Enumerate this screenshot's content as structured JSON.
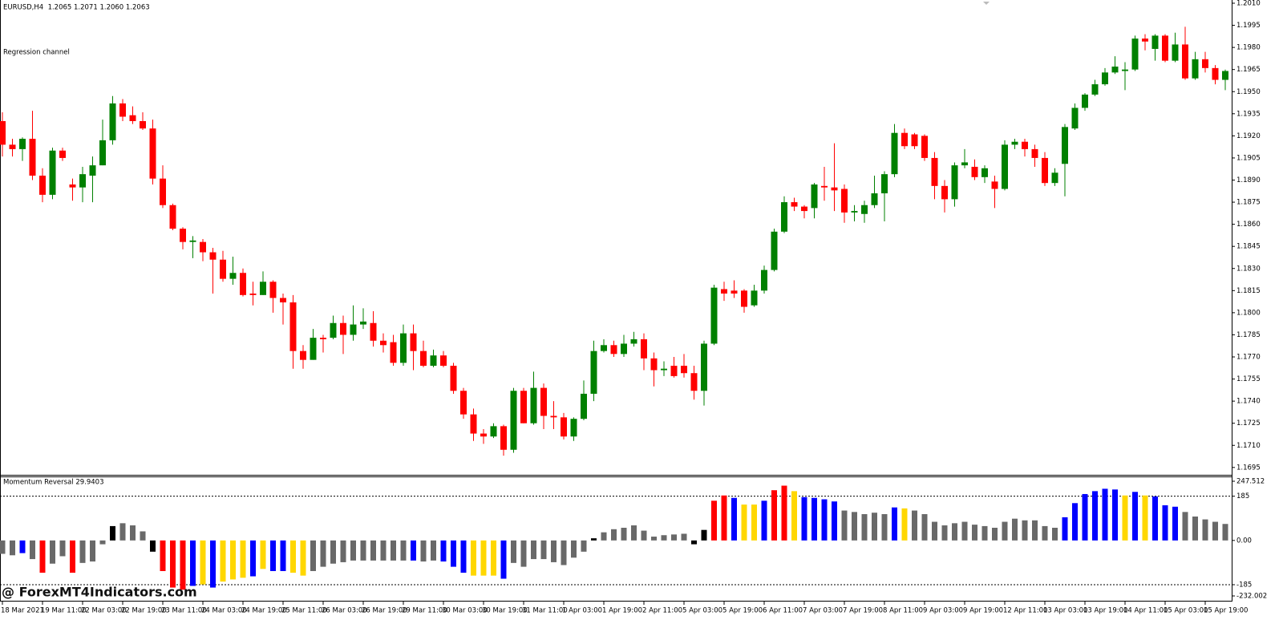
{
  "watermark": "@ ForexMT4Indicators.com",
  "chart_data": [
    {
      "type": "candlestick",
      "title": "EURUSD,H4  1.2065 1.2071 1.2060 1.2063",
      "annotation": "Regression channel",
      "up_color": "#008000",
      "down_color": "#ff0000",
      "categories": [
        "18 Mar 2021",
        null,
        null,
        null,
        "19 Mar 11:00",
        null,
        null,
        null,
        "22 Mar 03:00",
        null,
        null,
        null,
        "22 Mar 19:00",
        null,
        null,
        null,
        "23 Mar 11:00",
        null,
        null,
        null,
        "24 Mar 03:00",
        null,
        null,
        null,
        "24 Mar 19:00",
        null,
        null,
        null,
        "25 Mar 11:00",
        null,
        null,
        null,
        "26 Mar 03:00",
        null,
        null,
        null,
        "26 Mar 19:00",
        null,
        null,
        null,
        "29 Mar 11:00",
        null,
        null,
        null,
        "30 Mar 03:00",
        null,
        null,
        null,
        "30 Mar 19:00",
        null,
        null,
        null,
        "31 Mar 11:00",
        null,
        null,
        null,
        "1 Apr 03:00",
        null,
        null,
        null,
        "1 Apr 19:00",
        null,
        null,
        null,
        "2 Apr 11:00",
        null,
        null,
        null,
        "5 Apr 03:00",
        null,
        null,
        null,
        "5 Apr 19:00",
        null,
        null,
        null,
        "6 Apr 11:00",
        null,
        null,
        null,
        "7 Apr 03:00",
        null,
        null,
        null,
        "7 Apr 19:00",
        null,
        null,
        null,
        "8 Apr 11:00",
        null,
        null,
        null,
        "9 Apr 03:00",
        null,
        null,
        null,
        "9 Apr 19:00",
        null,
        null,
        null,
        "12 Apr 11:00",
        null,
        null,
        null,
        "13 Apr 03:00",
        null,
        null,
        null,
        "13 Apr 19:00",
        null,
        null,
        null,
        "14 Apr 11:00",
        null,
        null,
        null,
        "15 Apr 03:00",
        null,
        null,
        null,
        "15 Apr 19:00",
        null,
        null
      ],
      "open": [
        1.193,
        1.1914,
        1.1911,
        1.1918,
        1.1893,
        1.188,
        1.191,
        1.1887,
        1.1885,
        1.1893,
        1.19,
        1.1917,
        1.1942,
        1.1934,
        1.193,
        1.1925,
        1.1891,
        1.1873,
        1.1857,
        1.1848,
        1.1848,
        1.1841,
        1.1836,
        1.1823,
        1.1827,
        1.1813,
        1.1812,
        1.1821,
        1.181,
        1.1807,
        1.1774,
        1.1768,
        1.1783,
        1.1783,
        1.1793,
        1.1785,
        1.1792,
        1.1793,
        1.1781,
        1.178,
        1.1766,
        1.1786,
        1.1774,
        1.1764,
        1.1771,
        1.1764,
        1.1747,
        1.1731,
        1.1718,
        1.1716,
        1.1723,
        1.1707,
        1.1747,
        1.1725,
        1.1749,
        1.173,
        1.1729,
        1.1716,
        1.1728,
        1.1745,
        1.1774,
        1.1778,
        1.1772,
        1.1779,
        1.1782,
        1.1769,
        1.1761,
        1.1764,
        1.1764,
        1.1759,
        1.1747,
        1.1779,
        1.1816,
        1.1815,
        1.1815,
        1.1805,
        1.1815,
        1.1829,
        1.1855,
        1.1875,
        1.1872,
        1.1871,
        1.1886,
        1.1885,
        1.1884,
        1.1868,
        1.1867,
        1.1873,
        1.1881,
        1.1894,
        1.1922,
        1.1921,
        1.192,
        1.1905,
        1.1886,
        1.1877,
        1.19,
        1.1899,
        1.1892,
        1.1889,
        1.1884,
        1.1914,
        1.1916,
        1.1911,
        1.1905,
        1.1888,
        1.1901,
        1.1925,
        1.1939,
        1.1948,
        1.1955,
        1.1963,
        1.1964,
        1.1965,
        1.1986,
        1.1979,
        1.1988,
        1.1971,
        1.1982,
        1.1959,
        1.1972,
        1.1966,
        1.1958
      ],
      "high": [
        1.1936,
        1.1918,
        1.1919,
        1.1937,
        1.1898,
        1.1912,
        1.1912,
        1.1891,
        1.1899,
        1.1906,
        1.1931,
        1.1947,
        1.1945,
        1.194,
        1.1936,
        1.1931,
        1.19,
        1.1874,
        1.1858,
        1.1852,
        1.185,
        1.1844,
        1.1842,
        1.1838,
        1.183,
        1.1821,
        1.1828,
        1.1822,
        1.1813,
        1.1812,
        1.1778,
        1.1789,
        1.1785,
        1.1798,
        1.1798,
        1.1805,
        1.1803,
        1.1801,
        1.1786,
        1.1785,
        1.1792,
        1.1792,
        1.1781,
        1.1775,
        1.1774,
        1.1766,
        1.1749,
        1.1735,
        1.1721,
        1.1725,
        1.1724,
        1.1749,
        1.1749,
        1.176,
        1.1752,
        1.174,
        1.1732,
        1.1729,
        1.1754,
        1.1781,
        1.1782,
        1.1781,
        1.1785,
        1.1787,
        1.1786,
        1.1773,
        1.1767,
        1.177,
        1.1772,
        1.1764,
        1.1781,
        1.1819,
        1.1821,
        1.1822,
        1.1816,
        1.1819,
        1.1832,
        1.1857,
        1.1879,
        1.1878,
        1.1873,
        1.1888,
        1.1899,
        1.1915,
        1.1887,
        1.1873,
        1.1876,
        1.1893,
        1.1896,
        1.1928,
        1.1925,
        1.1922,
        1.1921,
        1.1909,
        1.189,
        1.1902,
        1.1911,
        1.1904,
        1.19,
        1.1893,
        1.1917,
        1.1918,
        1.1918,
        1.1914,
        1.1909,
        1.1898,
        1.1928,
        1.1942,
        1.1949,
        1.1958,
        1.1966,
        1.1974,
        1.197,
        1.1988,
        1.1989,
        1.1989,
        1.1989,
        1.199,
        1.1994,
        1.1977,
        1.1977,
        1.1968,
        1.1965
      ],
      "low": [
        1.1906,
        1.1906,
        1.1903,
        1.189,
        1.1875,
        1.1877,
        1.1903,
        1.1876,
        1.1875,
        1.1875,
        1.19,
        1.1914,
        1.193,
        1.1928,
        1.1924,
        1.1887,
        1.1871,
        1.1856,
        1.1843,
        1.1837,
        1.1835,
        1.1813,
        1.1821,
        1.1819,
        1.1811,
        1.1805,
        1.1812,
        1.18,
        1.1792,
        1.1762,
        1.1762,
        1.1768,
        1.1773,
        1.1782,
        1.1772,
        1.1781,
        1.1789,
        1.1777,
        1.1773,
        1.1764,
        1.1764,
        1.1761,
        1.1763,
        1.1763,
        1.1763,
        1.1745,
        1.1728,
        1.1713,
        1.1711,
        1.1715,
        1.1703,
        1.1705,
        1.1725,
        1.1724,
        1.1721,
        1.1721,
        1.1714,
        1.1713,
        1.1727,
        1.174,
        1.1773,
        1.177,
        1.177,
        1.1777,
        1.1761,
        1.175,
        1.1757,
        1.1756,
        1.1756,
        1.1741,
        1.1737,
        1.1778,
        1.1808,
        1.181,
        1.18,
        1.1804,
        1.1813,
        1.1828,
        1.1854,
        1.1869,
        1.1864,
        1.1864,
        1.1876,
        1.1869,
        1.1861,
        1.1862,
        1.1861,
        1.1871,
        1.1862,
        1.1892,
        1.1911,
        1.1911,
        1.1903,
        1.1877,
        1.1868,
        1.1872,
        1.1898,
        1.189,
        1.1888,
        1.1871,
        1.1883,
        1.1911,
        1.1906,
        1.1899,
        1.1886,
        1.1886,
        1.1879,
        1.1924,
        1.1937,
        1.1947,
        1.1954,
        1.1962,
        1.1951,
        1.1964,
        1.1978,
        1.1971,
        1.197,
        1.197,
        1.1958,
        1.1958,
        1.1963,
        1.1955,
        1.1951
      ],
      "close": [
        1.1914,
        1.1911,
        1.1918,
        1.1893,
        1.188,
        1.191,
        1.1905,
        1.1885,
        1.1894,
        1.19,
        1.1917,
        1.1942,
        1.1933,
        1.193,
        1.1925,
        1.1891,
        1.1873,
        1.1857,
        1.1848,
        1.1849,
        1.1841,
        1.1836,
        1.1823,
        1.1827,
        1.1812,
        1.1812,
        1.1821,
        1.181,
        1.1807,
        1.1774,
        1.1768,
        1.1783,
        1.1782,
        1.1793,
        1.1785,
        1.1792,
        1.1794,
        1.1781,
        1.1778,
        1.1766,
        1.1786,
        1.1774,
        1.1764,
        1.1771,
        1.1764,
        1.1747,
        1.1731,
        1.1718,
        1.1716,
        1.1723,
        1.1707,
        1.1747,
        1.1725,
        1.1749,
        1.173,
        1.1729,
        1.1716,
        1.1728,
        1.1745,
        1.1774,
        1.1778,
        1.1772,
        1.1779,
        1.1782,
        1.1769,
        1.1761,
        1.1762,
        1.1757,
        1.1759,
        1.1747,
        1.1779,
        1.1817,
        1.1813,
        1.1813,
        1.1804,
        1.1815,
        1.1829,
        1.1855,
        1.1875,
        1.1872,
        1.1869,
        1.1887,
        1.1885,
        1.1883,
        1.1868,
        1.1869,
        1.1873,
        1.1881,
        1.1894,
        1.1922,
        1.1913,
        1.1913,
        1.1905,
        1.1886,
        1.1877,
        1.19,
        1.1902,
        1.1892,
        1.1898,
        1.1884,
        1.1914,
        1.1916,
        1.1911,
        1.1905,
        1.1888,
        1.1895,
        1.1926,
        1.1939,
        1.1948,
        1.1955,
        1.1963,
        1.1967,
        1.1965,
        1.1986,
        1.1984,
        1.1988,
        1.1971,
        1.1982,
        1.1959,
        1.1972,
        1.1966,
        1.1958,
        1.1964
      ],
      "ylim": [
        1.169,
        1.201
      ],
      "yticks": [
        {
          "value": 1.201,
          "label": "1.2010"
        },
        1.1995,
        {
          "value": 1.198,
          "label": "1.1980"
        },
        1.1965,
        {
          "value": 1.195,
          "label": "1.1950"
        },
        1.1935,
        {
          "value": 1.192,
          "label": "1.1920"
        },
        1.1905,
        {
          "value": 1.189,
          "label": "1.1890"
        },
        1.1875,
        {
          "value": 1.186,
          "label": "1.1860"
        },
        1.1845,
        {
          "value": 1.183,
          "label": "1.1830"
        },
        1.1815,
        {
          "value": 1.18,
          "label": "1.1800"
        },
        1.1785,
        {
          "value": 1.177,
          "label": "1.1770"
        },
        1.1755,
        {
          "value": 1.174,
          "label": "1.1740"
        },
        1.1725,
        {
          "value": 1.171,
          "label": "1.1710"
        },
        1.1695
      ]
    },
    {
      "type": "bar",
      "title": "Momentum Reversal 29.9403",
      "values": [
        -56,
        -62,
        -53,
        -78,
        -135,
        -97,
        -66,
        -135,
        -94,
        -88,
        -16,
        60,
        72,
        63,
        38,
        -47,
        -128,
        -197,
        -206,
        -190,
        -184,
        -197,
        -172,
        -163,
        -156,
        -150,
        -119,
        -128,
        -128,
        -135,
        -147,
        -128,
        -110,
        -97,
        -91,
        -84,
        -84,
        -84,
        -84,
        -84,
        -84,
        -84,
        -88,
        -84,
        -88,
        -110,
        -135,
        -147,
        -147,
        -147,
        -160,
        -94,
        -110,
        -78,
        -78,
        -91,
        -103,
        -72,
        -47,
        9,
        34,
        47,
        53,
        63,
        41,
        16,
        22,
        25,
        28,
        -16,
        44,
        166,
        188,
        178,
        150,
        150,
        166,
        210,
        229,
        206,
        181,
        178,
        172,
        163,
        125,
        119,
        110,
        116,
        110,
        138,
        134,
        125,
        110,
        78,
        63,
        72,
        78,
        66,
        60,
        53,
        78,
        91,
        84,
        84,
        60,
        53,
        97,
        156,
        194,
        206,
        216,
        213,
        188,
        203,
        188,
        184,
        147,
        141,
        119,
        100,
        88,
        78,
        69
      ],
      "colors": [
        "dimgray",
        "dimgray",
        "blue",
        "dimgray",
        "red",
        "dimgray",
        "dimgray",
        "red",
        "dimgray",
        "dimgray",
        "dimgray",
        "black",
        "dimgray",
        "dimgray",
        "dimgray",
        "black",
        "red",
        "red",
        "red",
        "blue",
        "gold",
        "blue",
        "gold",
        "gold",
        "gold",
        "blue",
        "gold",
        "blue",
        "blue",
        "gold",
        "gold",
        "dimgray",
        "dimgray",
        "dimgray",
        "dimgray",
        "dimgray",
        "dimgray",
        "dimgray",
        "dimgray",
        "dimgray",
        "dimgray",
        "blue",
        "dimgray",
        "dimgray",
        "blue",
        "blue",
        "blue",
        "gold",
        "gold",
        "gold",
        "blue",
        "dimgray",
        "dimgray",
        "dimgray",
        "dimgray",
        "dimgray",
        "dimgray",
        "dimgray",
        "dimgray",
        "black",
        "dimgray",
        "dimgray",
        "dimgray",
        "dimgray",
        "dimgray",
        "dimgray",
        "dimgray",
        "dimgray",
        "dimgray",
        "black",
        "black",
        "red",
        "red",
        "blue",
        "gold",
        "gold",
        "blue",
        "red",
        "red",
        "gold",
        "blue",
        "blue",
        "blue",
        "blue",
        "dimgray",
        "dimgray",
        "dimgray",
        "dimgray",
        "dimgray",
        "blue",
        "gold",
        "dimgray",
        "dimgray",
        "dimgray",
        "dimgray",
        "dimgray",
        "dimgray",
        "dimgray",
        "dimgray",
        "dimgray",
        "dimgray",
        "dimgray",
        "dimgray",
        "dimgray",
        "dimgray",
        "dimgray",
        "blue",
        "blue",
        "blue",
        "blue",
        "blue",
        "blue",
        "gold",
        "blue",
        "gold",
        "blue",
        "blue",
        "blue",
        "dimgray",
        "dimgray",
        "dimgray",
        "dimgray",
        "dimgray"
      ],
      "levels": [
        185,
        -185
      ],
      "ylim": [
        -232.002,
        247.512
      ],
      "yticks": [
        247.512,
        185,
        {
          "value": 0,
          "label": "0.00"
        },
        -185,
        -232.002
      ]
    }
  ]
}
